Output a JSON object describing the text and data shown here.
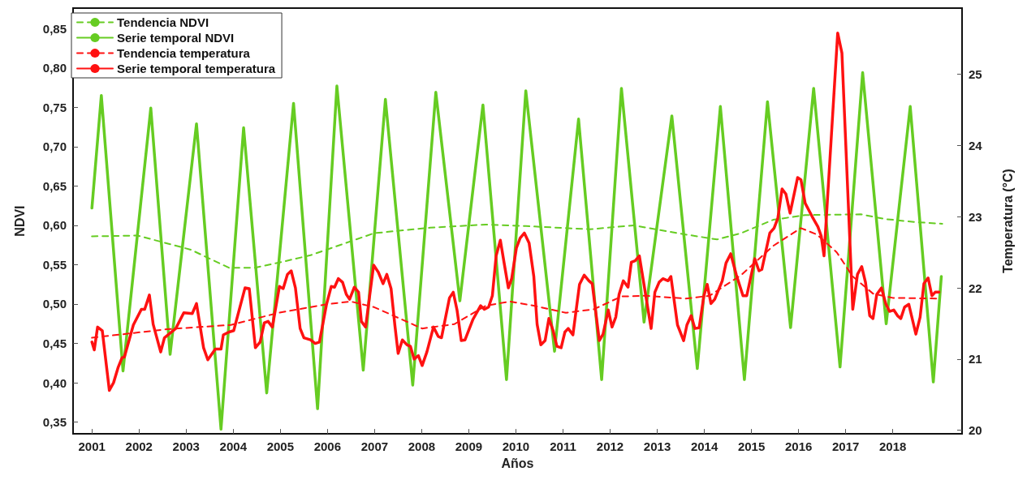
{
  "chart_data": {
    "type": "line",
    "xlabel": "Años",
    "ylabel": "NDVI",
    "y2label": "Temperatura (°C)",
    "xlim": [
      2000.6,
      2019.47
    ],
    "xticks": [
      2001,
      2002,
      2003,
      2004,
      2005,
      2006,
      2007,
      2008,
      2009,
      2010,
      2011,
      2012,
      2013,
      2014,
      2015,
      2016,
      2017,
      2018
    ],
    "ylim": [
      0.335,
      0.876
    ],
    "yticks": [
      {
        "value": 0.35,
        "label": "0,35"
      },
      {
        "value": 0.4,
        "label": "0,40"
      },
      {
        "value": 0.45,
        "label": "0,45"
      },
      {
        "value": 0.5,
        "label": "0,50"
      },
      {
        "value": 0.55,
        "label": "0,55"
      },
      {
        "value": 0.6,
        "label": "0,60"
      },
      {
        "value": 0.65,
        "label": "0,65"
      },
      {
        "value": 0.7,
        "label": "0,70"
      },
      {
        "value": 0.75,
        "label": "0,75"
      },
      {
        "value": 0.8,
        "label": "0,80"
      },
      {
        "value": 0.85,
        "label": "0,85"
      }
    ],
    "y2lim": [
      19.95,
      25.93
    ],
    "y2ticks": [
      20,
      21,
      22,
      23,
      24,
      25
    ],
    "grid": false,
    "legend": "top left",
    "marker": "none",
    "series": [
      {
        "name": "Tendencia NDVI",
        "color": "#66cc22",
        "line_style": "dashed",
        "x": [
          2001.0,
          2001.97,
          2003.1,
          2003.91,
          2004.45,
          2005.0,
          2005.64,
          2006.99,
          2008.18,
          2009.36,
          2010.21,
          2011.57,
          2012.5,
          2013.43,
          2014.27,
          2014.78,
          2015.46,
          2016.14,
          2017.32,
          2017.83,
          2018.51,
          2019.05
        ],
        "values": [
          0.586,
          0.587,
          0.569,
          0.546,
          0.546,
          0.553,
          0.562,
          0.59,
          0.597,
          0.601,
          0.599,
          0.595,
          0.6,
          0.59,
          0.582,
          0.59,
          0.607,
          0.613,
          0.614,
          0.608,
          0.604,
          0.602
        ]
      },
      {
        "name": "Serie temporal NDVI",
        "color": "#66cc22",
        "line_style": "solid",
        "x": [
          2001.0,
          2001.2,
          2001.66,
          2002.25,
          2002.66,
          2003.22,
          2003.74,
          2004.22,
          2004.71,
          2005.28,
          2005.79,
          2006.2,
          2006.76,
          2007.23,
          2007.81,
          2008.3,
          2008.81,
          2009.3,
          2009.8,
          2010.21,
          2010.82,
          2011.33,
          2011.82,
          2012.24,
          2012.72,
          2013.31,
          2013.85,
          2014.34,
          2014.85,
          2015.34,
          2015.83,
          2016.32,
          2016.88,
          2017.36,
          2017.86,
          2018.37,
          2018.86,
          2019.03
        ],
        "values": [
          0.622,
          0.765,
          0.415,
          0.749,
          0.436,
          0.729,
          0.341,
          0.724,
          0.387,
          0.755,
          0.367,
          0.777,
          0.416,
          0.76,
          0.397,
          0.769,
          0.504,
          0.753,
          0.404,
          0.771,
          0.44,
          0.735,
          0.404,
          0.774,
          0.477,
          0.739,
          0.418,
          0.751,
          0.404,
          0.757,
          0.47,
          0.774,
          0.42,
          0.794,
          0.475,
          0.751,
          0.401,
          0.535
        ]
      },
      {
        "name": "Tendencia temperatura",
        "color": "#ff1111",
        "line_style": "dashed",
        "axis": "y2",
        "x": [
          2001.0,
          2002.59,
          2003.95,
          2004.96,
          2005.98,
          2006.49,
          2006.99,
          2008.01,
          2008.69,
          2009.36,
          2009.87,
          2010.38,
          2011.06,
          2011.65,
          2012.24,
          2012.75,
          2013.6,
          2014.11,
          2014.78,
          2015.46,
          2016.05,
          2016.39,
          2016.81,
          2017.15,
          2017.58,
          2018.0,
          2018.98
        ],
        "values": [
          21.3,
          21.42,
          21.48,
          21.65,
          21.77,
          21.81,
          21.73,
          21.43,
          21.49,
          21.75,
          21.81,
          21.75,
          21.65,
          21.7,
          21.88,
          21.89,
          21.85,
          21.89,
          22.18,
          22.59,
          22.84,
          22.75,
          22.5,
          22.16,
          21.92,
          21.86,
          21.85
        ]
      },
      {
        "name": "Serie temporal temperatura",
        "color": "#ff1111",
        "line_style": "solid",
        "axis": "y2",
        "x": [
          2001.0,
          2001.05,
          2001.12,
          2001.22,
          2001.37,
          2001.46,
          2001.56,
          2001.64,
          2001.69,
          2001.88,
          2002.05,
          2002.12,
          2002.22,
          2002.3,
          2002.46,
          2002.54,
          2002.78,
          2002.95,
          2003.13,
          2003.22,
          2003.37,
          2003.46,
          2003.62,
          2003.74,
          2003.79,
          2003.91,
          2004.01,
          2004.25,
          2004.34,
          2004.47,
          2004.57,
          2004.66,
          2004.74,
          2004.83,
          2004.98,
          2005.06,
          2005.15,
          2005.23,
          2005.32,
          2005.42,
          2005.5,
          2005.64,
          2005.74,
          2005.83,
          2005.98,
          2006.08,
          2006.15,
          2006.23,
          2006.32,
          2006.4,
          2006.47,
          2006.57,
          2006.66,
          2006.72,
          2006.81,
          2006.98,
          2007.08,
          2007.18,
          2007.26,
          2007.35,
          2007.43,
          2007.5,
          2007.59,
          2007.69,
          2007.76,
          2007.84,
          2007.93,
          2008.01,
          2008.11,
          2008.25,
          2008.35,
          2008.42,
          2008.59,
          2008.67,
          2008.75,
          2008.84,
          2008.92,
          2009.09,
          2009.25,
          2009.33,
          2009.42,
          2009.5,
          2009.58,
          2009.67,
          2009.75,
          2009.84,
          2009.91,
          2010.01,
          2010.09,
          2010.18,
          2010.28,
          2010.38,
          2010.45,
          2010.53,
          2010.62,
          2010.7,
          2010.79,
          2010.87,
          2010.96,
          2011.04,
          2011.11,
          2011.21,
          2011.35,
          2011.45,
          2011.55,
          2011.62,
          2011.77,
          2011.85,
          2011.96,
          2012.04,
          2012.12,
          2012.19,
          2012.28,
          2012.38,
          2012.45,
          2012.53,
          2012.62,
          2012.87,
          2012.95,
          2013.04,
          2013.12,
          2013.23,
          2013.29,
          2013.43,
          2013.56,
          2013.63,
          2013.72,
          2013.8,
          2013.89,
          2013.99,
          2014.06,
          2014.14,
          2014.22,
          2014.38,
          2014.46,
          2014.56,
          2014.68,
          2014.82,
          2014.9,
          2015.07,
          2015.16,
          2015.22,
          2015.39,
          2015.48,
          2015.56,
          2015.65,
          2015.73,
          2015.82,
          2015.98,
          2016.05,
          2016.14,
          2016.29,
          2016.41,
          2016.48,
          2016.54,
          2016.83,
          2016.92,
          2017.15,
          2017.25,
          2017.34,
          2017.42,
          2017.51,
          2017.58,
          2017.66,
          2017.76,
          2017.85,
          2017.93,
          2018.02,
          2018.1,
          2018.17,
          2018.25,
          2018.34,
          2018.49,
          2018.58,
          2018.66,
          2018.75,
          2018.83,
          2018.9,
          2018.98
        ],
        "values": [
          21.24,
          21.13,
          21.45,
          21.4,
          20.56,
          20.67,
          20.89,
          21.02,
          21.03,
          21.48,
          21.7,
          21.7,
          21.9,
          21.49,
          21.1,
          21.3,
          21.43,
          21.65,
          21.64,
          21.78,
          21.16,
          20.99,
          21.14,
          21.14,
          21.34,
          21.38,
          21.4,
          22.0,
          21.99,
          21.16,
          21.24,
          21.51,
          21.53,
          21.45,
          22.02,
          21.99,
          22.19,
          22.24,
          22.0,
          21.43,
          21.3,
          21.27,
          21.22,
          21.24,
          21.77,
          22.02,
          22.01,
          22.13,
          22.08,
          21.91,
          21.84,
          22.01,
          21.94,
          21.53,
          21.45,
          22.32,
          22.22,
          22.06,
          22.19,
          21.99,
          21.48,
          21.08,
          21.27,
          21.2,
          21.18,
          21.0,
          21.05,
          20.91,
          21.1,
          21.45,
          21.32,
          21.3,
          21.86,
          21.94,
          21.69,
          21.26,
          21.27,
          21.56,
          21.75,
          21.7,
          21.73,
          21.89,
          22.45,
          22.67,
          22.35,
          22.0,
          22.13,
          22.56,
          22.7,
          22.77,
          22.63,
          22.16,
          21.49,
          21.2,
          21.26,
          21.57,
          21.4,
          21.18,
          21.16,
          21.38,
          21.43,
          21.34,
          22.05,
          22.18,
          22.1,
          22.06,
          21.26,
          21.35,
          21.69,
          21.45,
          21.59,
          21.91,
          22.1,
          22.01,
          22.36,
          22.38,
          22.45,
          21.43,
          21.94,
          22.08,
          22.13,
          22.1,
          22.16,
          21.48,
          21.26,
          21.48,
          21.61,
          21.43,
          21.44,
          21.89,
          22.05,
          21.78,
          21.84,
          22.1,
          22.35,
          22.48,
          22.18,
          21.89,
          21.89,
          22.41,
          22.24,
          22.26,
          22.77,
          22.84,
          22.98,
          23.39,
          23.32,
          23.05,
          23.55,
          23.52,
          23.19,
          23.0,
          22.86,
          22.73,
          22.45,
          25.58,
          25.3,
          21.7,
          22.19,
          22.3,
          22.08,
          21.61,
          21.57,
          21.91,
          22.0,
          21.78,
          21.67,
          21.69,
          21.61,
          21.57,
          21.73,
          21.77,
          21.35,
          21.59,
          22.06,
          22.14,
          21.89,
          21.94,
          21.94
        ]
      }
    ]
  }
}
